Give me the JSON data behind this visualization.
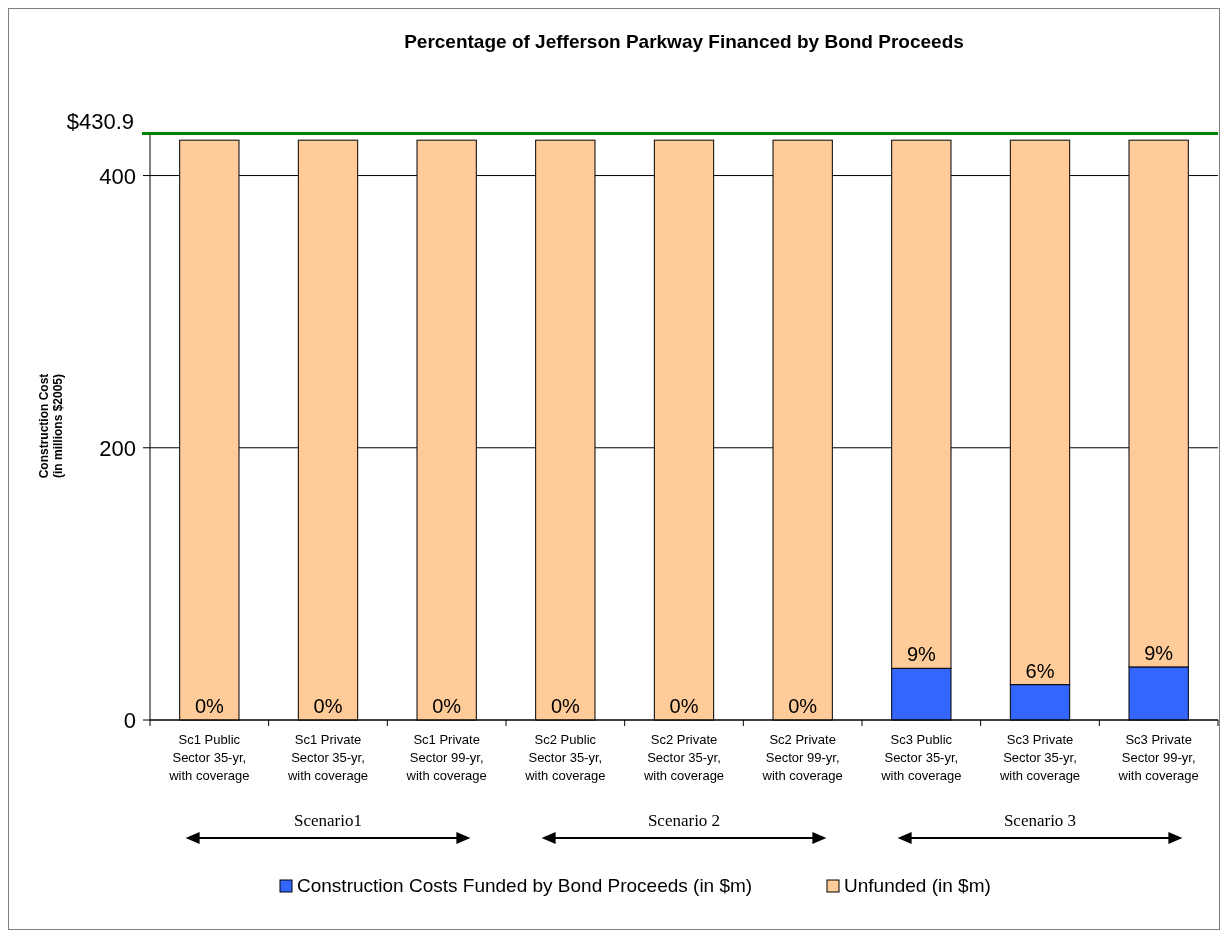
{
  "chart_data": {
    "type": "bar",
    "title": "Percentage of Jefferson Parkway Financed by Bond Proceeds",
    "ylabel": "Construction Cost\n(in millions $2005)",
    "categories": [
      "Sc1 Public Sector 35-yr, with coverage",
      "Sc1 Private Sector 35-yr, with coverage",
      "Sc1 Private Sector 99-yr, with coverage",
      "Sc2 Public Sector 35-yr, with coverage",
      "Sc2 Private Sector 35-yr, with coverage",
      "Sc2 Private Sector 99-yr, with coverage",
      "Sc3 Public Sector 35-yr, with coverage",
      "Sc3 Private Sector 35-yr, with coverage",
      "Sc3 Private Sector 99-yr, with coverage"
    ],
    "stacked": true,
    "series": [
      {
        "name": "Construction Costs Funded by Bond Proceeds (in $m)",
        "color": "#3366ff",
        "values": [
          0,
          0,
          0,
          0,
          0,
          0,
          38,
          26,
          39
        ]
      },
      {
        "name": "Unfunded  (in $m)",
        "color": "#ffcc99",
        "values": [
          426,
          426,
          426,
          426,
          426,
          426,
          388,
          400,
          387
        ]
      }
    ],
    "ylim": [
      0,
      432
    ],
    "yticks": [
      0,
      200,
      400
    ],
    "grid": "y",
    "legend": "bottom",
    "ref_lines": [
      {
        "axis": "y",
        "value": 430.9,
        "label": "$430.9",
        "color": "#008000"
      }
    ],
    "annotations": [
      "Scenario1",
      "Scenario 2",
      "Scenario 3",
      {
        "text": "0%",
        "x": "Sc1 Public Sector 35-yr, with coverage",
        "y": 0
      },
      {
        "text": "0%",
        "x": "Sc1 Private Sector 35-yr, with coverage",
        "y": 0
      },
      {
        "text": "0%",
        "x": "Sc1 Private Sector 99-yr, with coverage",
        "y": 0
      },
      {
        "text": "0%",
        "x": "Sc2 Public Sector 35-yr, with coverage",
        "y": 0
      },
      {
        "text": "0%",
        "x": "Sc2 Private Sector 35-yr, with coverage",
        "y": 0
      },
      {
        "text": "0%",
        "x": "Sc2 Private Sector 99-yr, with coverage",
        "y": 0
      },
      {
        "text": "9%",
        "x": "Sc3 Public Sector 35-yr, with coverage",
        "y": 38
      },
      {
        "text": "6%",
        "x": "Sc3 Private Sector 35-yr, with coverage",
        "y": 26
      },
      {
        "text": "9%",
        "x": "Sc3 Private Sector 99-yr, with coverage",
        "y": 39
      }
    ]
  }
}
